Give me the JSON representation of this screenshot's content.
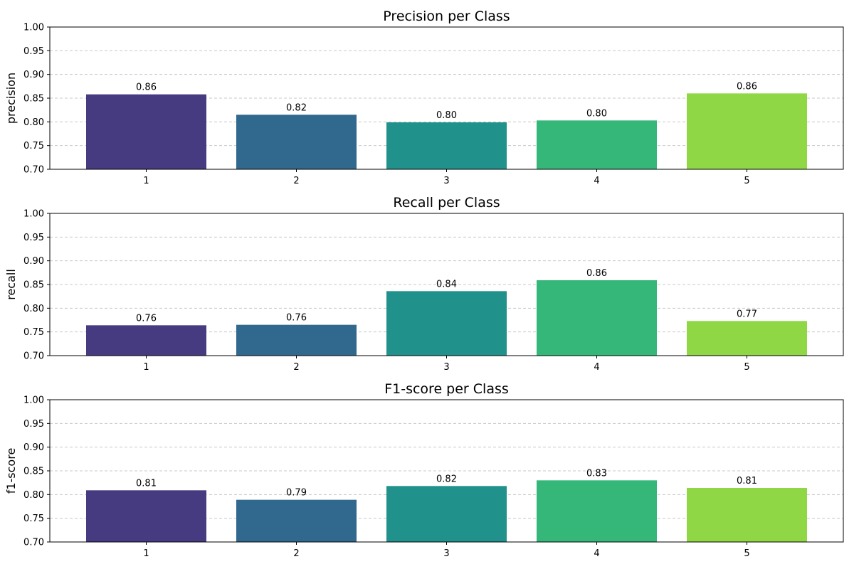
{
  "chart_data": [
    {
      "type": "bar",
      "title": "Precision per Class",
      "xlabel": "",
      "ylabel": "precision",
      "categories": [
        "1",
        "2",
        "3",
        "4",
        "5"
      ],
      "values": [
        0.858,
        0.815,
        0.799,
        0.803,
        0.86
      ],
      "value_labels": [
        "0.86",
        "0.82",
        "0.80",
        "0.80",
        "0.86"
      ],
      "ylim": [
        0.7,
        1.0
      ],
      "yticks": [
        "0.70",
        "0.75",
        "0.80",
        "0.85",
        "0.90",
        "0.95",
        "1.00"
      ],
      "grid": "y-dashed",
      "bar_colors": [
        "#463a80",
        "#31688e",
        "#21918c",
        "#35b779",
        "#8fd744"
      ]
    },
    {
      "type": "bar",
      "title": "Recall per Class",
      "xlabel": "",
      "ylabel": "recall",
      "categories": [
        "1",
        "2",
        "3",
        "4",
        "5"
      ],
      "values": [
        0.764,
        0.765,
        0.836,
        0.859,
        0.773
      ],
      "value_labels": [
        "0.76",
        "0.76",
        "0.84",
        "0.86",
        "0.77"
      ],
      "ylim": [
        0.7,
        1.0
      ],
      "yticks": [
        "0.70",
        "0.75",
        "0.80",
        "0.85",
        "0.90",
        "0.95",
        "1.00"
      ],
      "grid": "y-dashed",
      "bar_colors": [
        "#463a80",
        "#31688e",
        "#21918c",
        "#35b779",
        "#8fd744"
      ]
    },
    {
      "type": "bar",
      "title": "F1-score per Class",
      "xlabel": "",
      "ylabel": "f1-score",
      "categories": [
        "1",
        "2",
        "3",
        "4",
        "5"
      ],
      "values": [
        0.809,
        0.789,
        0.818,
        0.83,
        0.814
      ],
      "value_labels": [
        "0.81",
        "0.79",
        "0.82",
        "0.83",
        "0.81"
      ],
      "ylim": [
        0.7,
        1.0
      ],
      "yticks": [
        "0.70",
        "0.75",
        "0.80",
        "0.85",
        "0.90",
        "0.95",
        "1.00"
      ],
      "grid": "y-dashed",
      "bar_colors": [
        "#463a80",
        "#31688e",
        "#21918c",
        "#35b779",
        "#8fd744"
      ]
    }
  ]
}
